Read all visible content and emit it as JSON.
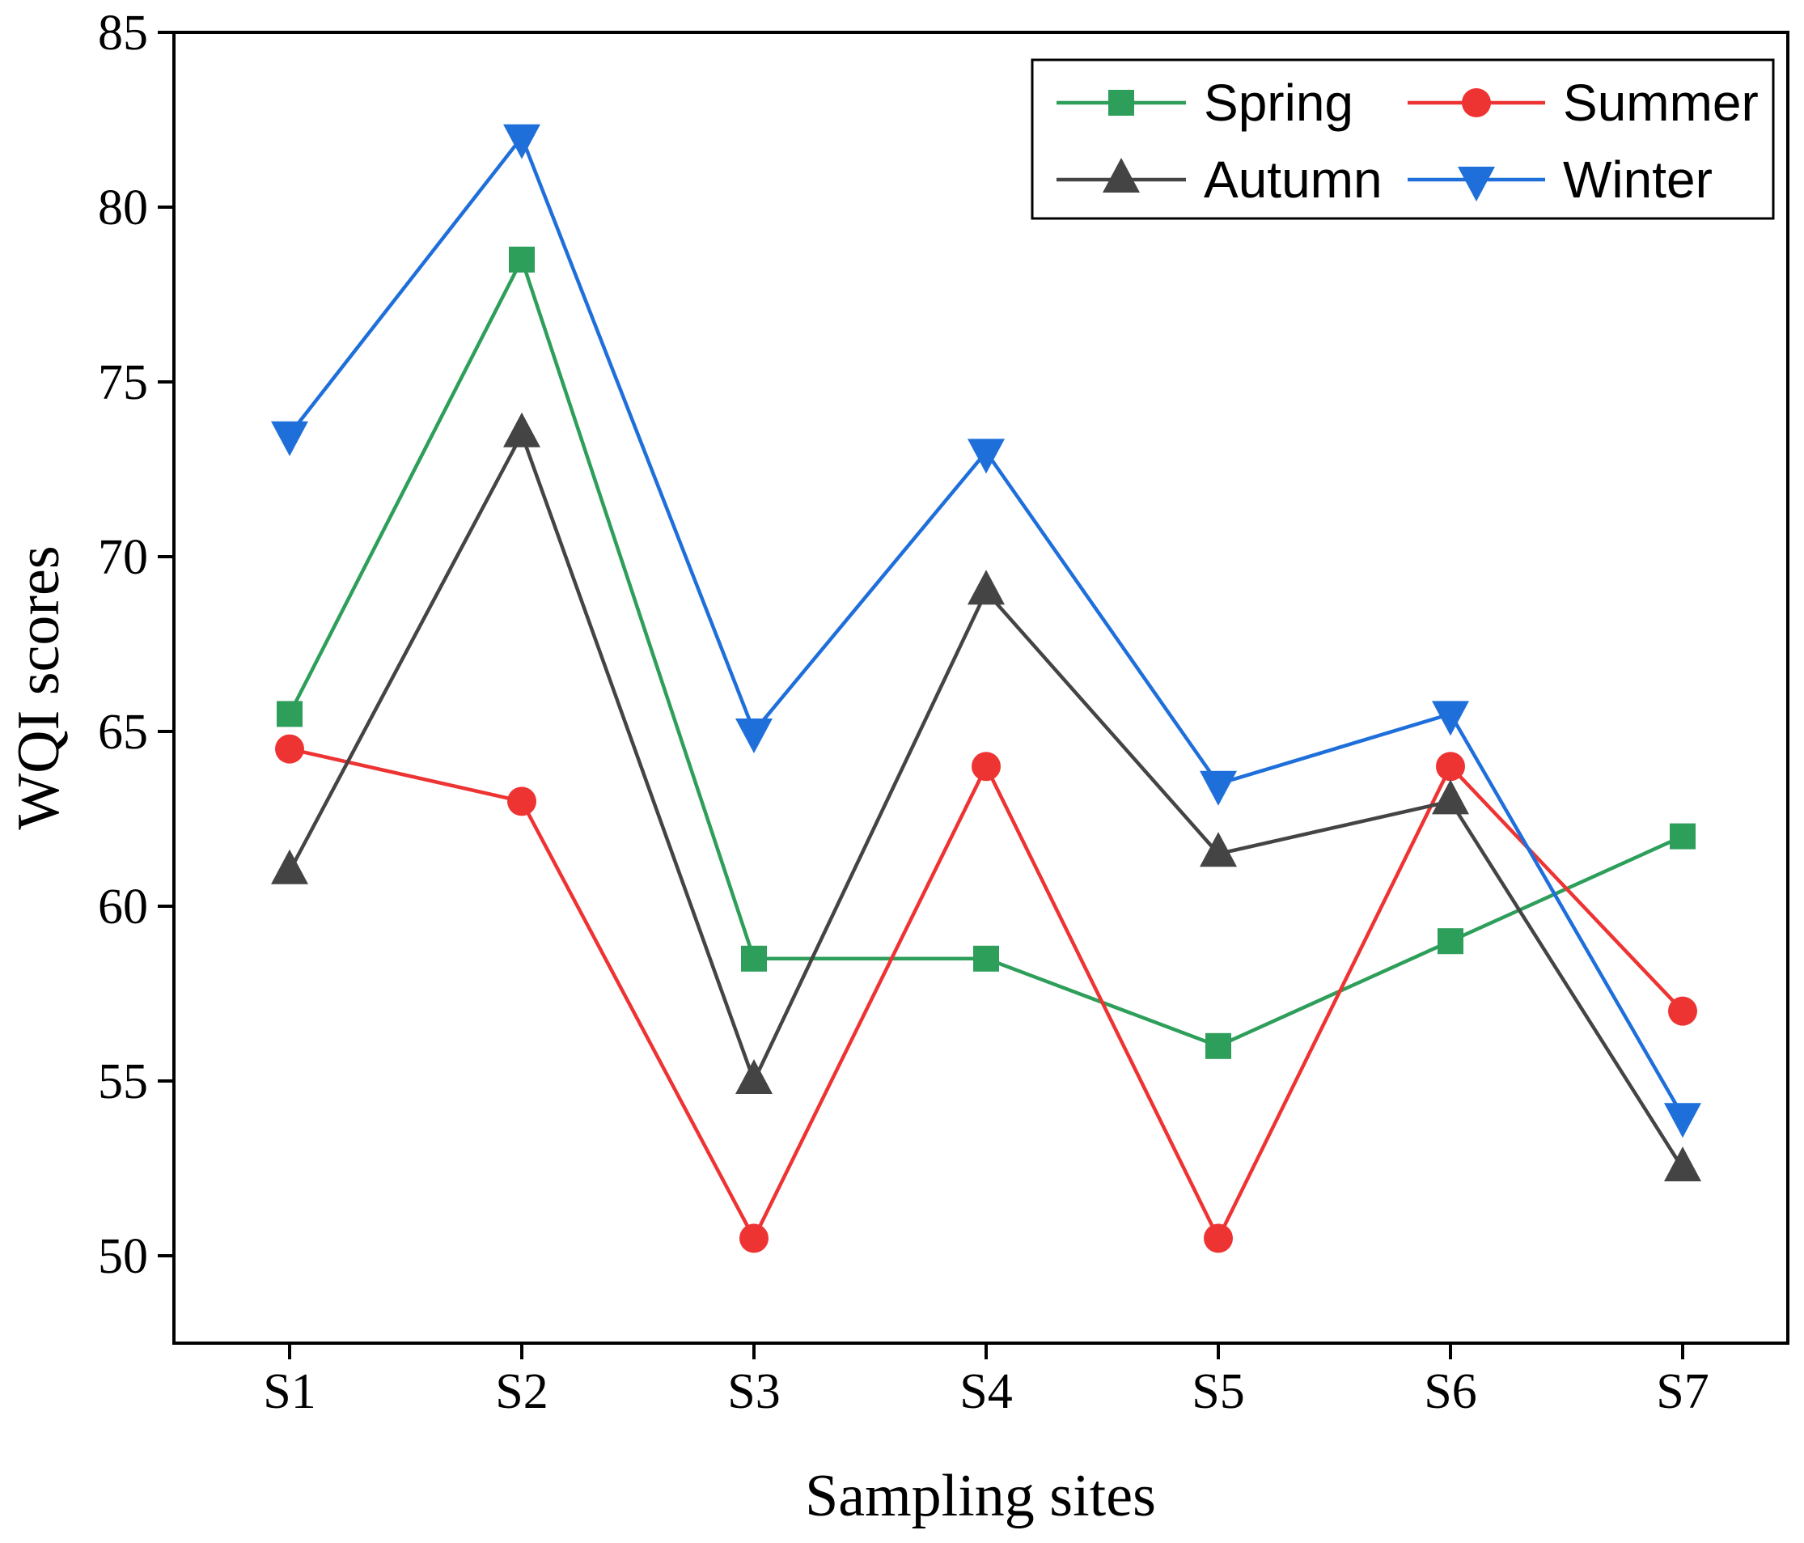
{
  "chart_data": {
    "type": "line",
    "categories": [
      "S1",
      "S2",
      "S3",
      "S4",
      "S5",
      "S6",
      "S7"
    ],
    "series": [
      {
        "name": "Spring",
        "color": "#2e9e5b",
        "marker": "square",
        "values": [
          65.5,
          78.5,
          58.5,
          58.5,
          56,
          59,
          62
        ]
      },
      {
        "name": "Summer",
        "color": "#ee3333",
        "marker": "circle",
        "values": [
          64.5,
          63,
          50.5,
          64,
          50.5,
          64,
          57
        ]
      },
      {
        "name": "Autumn",
        "color": "#444444",
        "marker": "triangle-up",
        "values": [
          61,
          73.5,
          55,
          69,
          61.5,
          63,
          52.5
        ]
      },
      {
        "name": "Winter",
        "color": "#1f6fdb",
        "marker": "triangle-down",
        "values": [
          73.5,
          82,
          65,
          73,
          63.5,
          65.5,
          54
        ]
      }
    ],
    "xlabel": "Sampling sites",
    "ylabel": "WQI scores",
    "ylim": [
      47.5,
      85
    ],
    "yticks": [
      50,
      55,
      60,
      65,
      70,
      75,
      80,
      85
    ],
    "legend_position": "top-right",
    "grid": false
  }
}
